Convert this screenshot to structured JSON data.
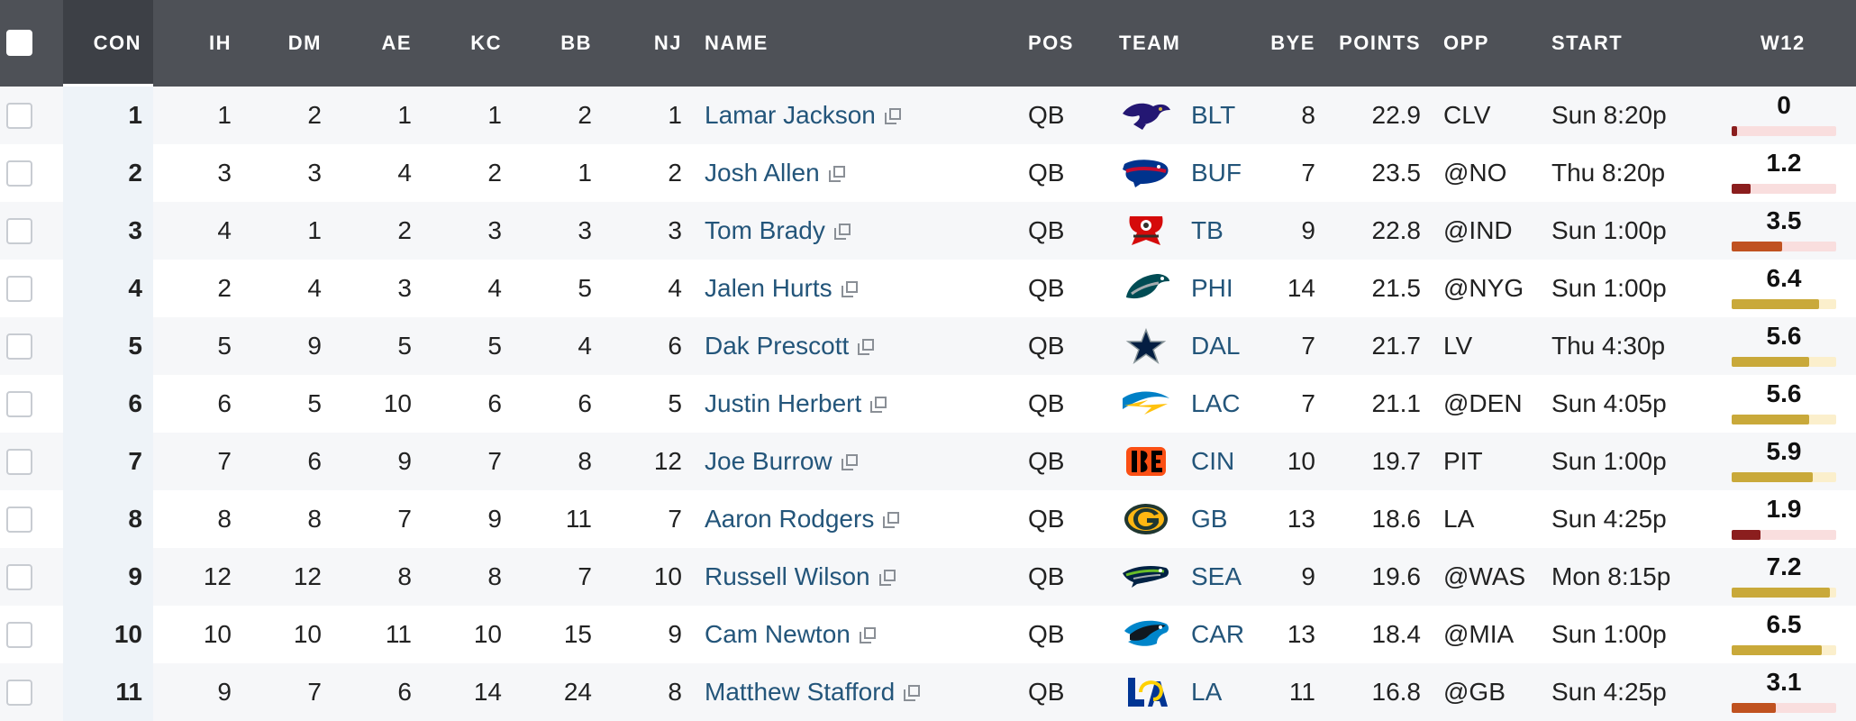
{
  "header": {
    "columns": {
      "con": "CON",
      "ih": "IH",
      "dm": "DM",
      "ae": "AE",
      "kc": "KC",
      "bb": "BB",
      "nj": "NJ",
      "name": "NAME",
      "pos": "POS",
      "team": "TEAM",
      "bye": "BYE",
      "points": "POINTS",
      "opp": "OPP",
      "start": "START",
      "w12": "W12"
    }
  },
  "colors": {
    "header_bg": "#4e5157",
    "con_header_bg": "#3d4046",
    "link": "#23557a",
    "bar_low": "#8b1e1e",
    "bar_mid": "#c05220",
    "bar_high": "#c9a93a",
    "bar_low_track": "#f9dede",
    "bar_high_track": "#fbefcc"
  },
  "rows": [
    {
      "con": "1",
      "ih": "1",
      "dm": "2",
      "ae": "1",
      "kc": "1",
      "bb": "2",
      "nj": "1",
      "name": "Lamar Jackson",
      "pos": "QB",
      "team": "BLT",
      "logo": "ravens-logo-icon",
      "bye": "8",
      "points": "22.9",
      "opp": "CLV",
      "start": "Sun 8:20p",
      "w12": "0",
      "w12_fraction": 0.05,
      "w12_level": "low"
    },
    {
      "con": "2",
      "ih": "3",
      "dm": "3",
      "ae": "4",
      "kc": "2",
      "bb": "1",
      "nj": "2",
      "name": "Josh Allen",
      "pos": "QB",
      "team": "BUF",
      "logo": "bills-logo-icon",
      "bye": "7",
      "points": "23.5",
      "opp": "@NO",
      "start": "Thu 8:20p",
      "w12": "1.2",
      "w12_fraction": 0.18,
      "w12_level": "low"
    },
    {
      "con": "3",
      "ih": "4",
      "dm": "1",
      "ae": "2",
      "kc": "3",
      "bb": "3",
      "nj": "3",
      "name": "Tom Brady",
      "pos": "QB",
      "team": "TB",
      "logo": "buccaneers-logo-icon",
      "bye": "9",
      "points": "22.8",
      "opp": "@IND",
      "start": "Sun 1:00p",
      "w12": "3.5",
      "w12_fraction": 0.48,
      "w12_level": "mid"
    },
    {
      "con": "4",
      "ih": "2",
      "dm": "4",
      "ae": "3",
      "kc": "4",
      "bb": "5",
      "nj": "4",
      "name": "Jalen Hurts",
      "pos": "QB",
      "team": "PHI",
      "logo": "eagles-logo-icon",
      "bye": "14",
      "points": "21.5",
      "opp": "@NYG",
      "start": "Sun 1:00p",
      "w12": "6.4",
      "w12_fraction": 0.84,
      "w12_level": "high"
    },
    {
      "con": "5",
      "ih": "5",
      "dm": "9",
      "ae": "5",
      "kc": "5",
      "bb": "4",
      "nj": "6",
      "name": "Dak Prescott",
      "pos": "QB",
      "team": "DAL",
      "logo": "cowboys-logo-icon",
      "bye": "7",
      "points": "21.7",
      "opp": "LV",
      "start": "Thu 4:30p",
      "w12": "5.6",
      "w12_fraction": 0.74,
      "w12_level": "high"
    },
    {
      "con": "6",
      "ih": "6",
      "dm": "5",
      "ae": "10",
      "kc": "6",
      "bb": "6",
      "nj": "5",
      "name": "Justin Herbert",
      "pos": "QB",
      "team": "LAC",
      "logo": "chargers-logo-icon",
      "bye": "7",
      "points": "21.1",
      "opp": "@DEN",
      "start": "Sun 4:05p",
      "w12": "5.6",
      "w12_fraction": 0.74,
      "w12_level": "high"
    },
    {
      "con": "7",
      "ih": "7",
      "dm": "6",
      "ae": "9",
      "kc": "7",
      "bb": "8",
      "nj": "12",
      "name": "Joe Burrow",
      "pos": "QB",
      "team": "CIN",
      "logo": "bengals-logo-icon",
      "bye": "10",
      "points": "19.7",
      "opp": "PIT",
      "start": "Sun 1:00p",
      "w12": "5.9",
      "w12_fraction": 0.78,
      "w12_level": "high"
    },
    {
      "con": "8",
      "ih": "8",
      "dm": "8",
      "ae": "7",
      "kc": "9",
      "bb": "11",
      "nj": "7",
      "name": "Aaron Rodgers",
      "pos": "QB",
      "team": "GB",
      "logo": "packers-logo-icon",
      "bye": "13",
      "points": "18.6",
      "opp": "LA",
      "start": "Sun 4:25p",
      "w12": "1.9",
      "w12_fraction": 0.28,
      "w12_level": "low"
    },
    {
      "con": "9",
      "ih": "12",
      "dm": "12",
      "ae": "8",
      "kc": "8",
      "bb": "7",
      "nj": "10",
      "name": "Russell Wilson",
      "pos": "QB",
      "team": "SEA",
      "logo": "seahawks-logo-icon",
      "bye": "9",
      "points": "19.6",
      "opp": "@WAS",
      "start": "Mon 8:15p",
      "w12": "7.2",
      "w12_fraction": 0.94,
      "w12_level": "high"
    },
    {
      "con": "10",
      "ih": "10",
      "dm": "10",
      "ae": "11",
      "kc": "10",
      "bb": "15",
      "nj": "9",
      "name": "Cam Newton",
      "pos": "QB",
      "team": "CAR",
      "logo": "panthers-logo-icon",
      "bye": "13",
      "points": "18.4",
      "opp": "@MIA",
      "start": "Sun 1:00p",
      "w12": "6.5",
      "w12_fraction": 0.86,
      "w12_level": "high"
    },
    {
      "con": "11",
      "ih": "9",
      "dm": "7",
      "ae": "6",
      "kc": "14",
      "bb": "24",
      "nj": "8",
      "name": "Matthew Stafford",
      "pos": "QB",
      "team": "LA",
      "logo": "rams-logo-icon",
      "bye": "11",
      "points": "16.8",
      "opp": "@GB",
      "start": "Sun 4:25p",
      "w12": "3.1",
      "w12_fraction": 0.42,
      "w12_level": "mid"
    }
  ]
}
